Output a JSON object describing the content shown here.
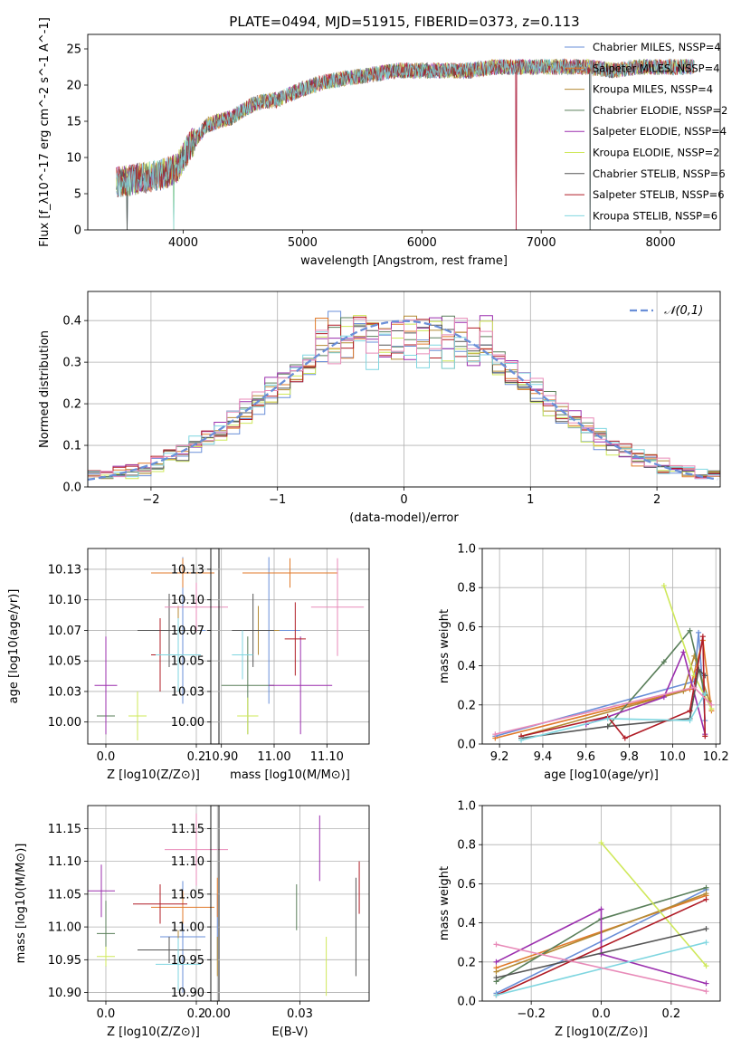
{
  "title": "PLATE=0494, MJD=51915, FIBERID=0373, z=0.113",
  "colors": [
    "#6a8fd8",
    "#e07a2a",
    "#b48a34",
    "#5a7f5a",
    "#9b2fae",
    "#cfe85a",
    "#555555",
    "#b01c26",
    "#7fd6e0",
    "#e88ab8"
  ],
  "chart_data": [
    {
      "id": "spectrum",
      "type": "line",
      "xlabel": "wavelength [Angstrom, rest frame]",
      "ylabel": "Flux [f_λ10^-17 erg cm^-2 s^-1 A^-1]",
      "xlim": [
        3200,
        8500
      ],
      "ylim": [
        0,
        27
      ],
      "xticks": [
        4000,
        5000,
        6000,
        7000,
        8000
      ],
      "yticks": [
        0,
        5,
        10,
        15,
        20,
        25
      ],
      "x_range": [
        3440,
        8280
      ],
      "legend_position": "right",
      "continuum_x": [
        3440,
        3600,
        3800,
        3950,
        4050,
        4200,
        4400,
        4600,
        4800,
        5000,
        5200,
        5400,
        5600,
        5800,
        6000,
        6200,
        6400,
        6600,
        6800,
        7000,
        7200,
        7400,
        7600,
        7800,
        8000,
        8280
      ],
      "continuum_y": [
        6.5,
        7.0,
        7.5,
        8.5,
        11.5,
        14.5,
        15.5,
        17.5,
        18.0,
        19.5,
        20.5,
        21.0,
        21.5,
        22.0,
        22.0,
        22.0,
        22.0,
        22.5,
        22.5,
        22.5,
        22.5,
        22.5,
        22.0,
        22.5,
        22.5,
        22.5
      ],
      "drops_x": [
        3530,
        3920,
        6790,
        7410
      ],
      "series": [
        {
          "name": "Chabrier MILES, N_SSP=4"
        },
        {
          "name": "Salpeter MILES, N_SSP=4"
        },
        {
          "name": "Kroupa MILES, N_SSP=4"
        },
        {
          "name": "Chabrier ELODIE, N_SSP=2"
        },
        {
          "name": "Salpeter ELODIE, N_SSP=4"
        },
        {
          "name": "Kroupa ELODIE, N_SSP=2"
        },
        {
          "name": "Chabrier STELIB, N_SSP=6"
        },
        {
          "name": "Salpeter STELIB, N_SSP=6"
        },
        {
          "name": "Kroupa STELIB, N_SSP=6"
        }
      ]
    },
    {
      "id": "residuals",
      "type": "step",
      "xlabel": "(data-model)/error",
      "ylabel": "Normed distribution",
      "xlim": [
        -2.5,
        2.5
      ],
      "ylim": [
        0,
        0.47
      ],
      "xticks": [
        -2,
        -1,
        0,
        1,
        2
      ],
      "yticks": [
        0.0,
        0.1,
        0.2,
        0.3,
        0.4
      ],
      "bin_width": 0.1,
      "reference_curve": "𝒩(0,1)",
      "legend_position": "top-right",
      "n_histograms": 10
    },
    {
      "id": "age_vs_Z",
      "type": "errorbar",
      "xlabel": "Z [log10(Z/Z⊙)]",
      "ylabel": "age  [log10(age/yr)]",
      "xlim": [
        -0.04,
        0.25
      ],
      "ylim": [
        9.982,
        10.142
      ],
      "xticks": [
        0.0,
        0.2
      ],
      "yticks": [
        10.0,
        10.025,
        10.05,
        10.075,
        10.1,
        10.125
      ],
      "points": [
        {
          "x": 0.17,
          "y": 10.075,
          "xerr": 0.05,
          "yerr": 0.06
        },
        {
          "x": 0.17,
          "y": 10.122,
          "xerr": 0.07,
          "yerr": 0.012
        },
        {
          "x": 0.16,
          "y": 10.075,
          "xerr": 0.05,
          "yerr": 0.02
        },
        {
          "x": 0.0,
          "y": 10.005,
          "xerr": 0.02,
          "yerr": 0.015
        },
        {
          "x": 0.0,
          "y": 10.03,
          "xerr": 0.025,
          "yerr": 0.04
        },
        {
          "x": 0.07,
          "y": 10.005,
          "xerr": 0.02,
          "yerr": 0.02
        },
        {
          "x": 0.14,
          "y": 10.075,
          "xerr": 0.07,
          "yerr": 0.03
        },
        {
          "x": 0.12,
          "y": 10.055,
          "xerr": 0.02,
          "yerr": 0.03
        },
        {
          "x": 0.16,
          "y": 10.055,
          "xerr": 0.05,
          "yerr": 0.03
        },
        {
          "x": 0.2,
          "y": 10.094,
          "xerr": 0.07,
          "yerr": 0.02
        }
      ]
    },
    {
      "id": "age_vs_mass",
      "type": "errorbar",
      "xlabel": "mass [log10(M/M⊙)]",
      "ylabel": "",
      "xlim": [
        10.88,
        11.18
      ],
      "ylim": [
        9.982,
        10.142
      ],
      "xticks": [
        10.9,
        11.0,
        11.1
      ],
      "yticks": [
        10.0,
        10.025,
        10.05,
        10.075,
        10.1,
        10.125
      ],
      "points": [
        {
          "x": 10.99,
          "y": 10.075,
          "xerr": 0.06,
          "yerr": 0.06
        },
        {
          "x": 11.03,
          "y": 10.122,
          "xerr": 0.09,
          "yerr": 0.012
        },
        {
          "x": 10.97,
          "y": 10.075,
          "xerr": 0.04,
          "yerr": 0.02
        },
        {
          "x": 10.95,
          "y": 10.03,
          "xerr": 0.05,
          "yerr": 0.04
        },
        {
          "x": 11.05,
          "y": 10.03,
          "xerr": 0.06,
          "yerr": 0.04
        },
        {
          "x": 10.95,
          "y": 10.005,
          "xerr": 0.02,
          "yerr": 0.015
        },
        {
          "x": 10.96,
          "y": 10.075,
          "xerr": 0.04,
          "yerr": 0.03
        },
        {
          "x": 11.04,
          "y": 10.068,
          "xerr": 0.02,
          "yerr": 0.03
        },
        {
          "x": 10.94,
          "y": 10.055,
          "xerr": 0.02,
          "yerr": 0.02
        },
        {
          "x": 11.12,
          "y": 10.094,
          "xerr": 0.05,
          "yerr": 0.04
        }
      ]
    },
    {
      "id": "weight_vs_age",
      "type": "line",
      "xlabel": "age  [log10(age/yr)]",
      "ylabel": "mass weight",
      "xlim": [
        9.12,
        10.22
      ],
      "ylim": [
        0,
        1
      ],
      "xticks": [
        9.2,
        9.4,
        9.6,
        9.8,
        10.0,
        10.2
      ],
      "yticks": [
        0.0,
        0.2,
        0.4,
        0.6,
        0.8,
        1.0
      ],
      "series": [
        {
          "x": [
            9.18,
            10.1,
            10.12,
            10.15
          ],
          "y": [
            0.04,
            0.32,
            0.57,
            0.12
          ]
        },
        {
          "x": [
            9.18,
            10.08,
            10.14,
            10.18
          ],
          "y": [
            0.03,
            0.28,
            0.53,
            0.17
          ]
        },
        {
          "x": [
            9.3,
            10.05,
            10.1,
            10.17
          ],
          "y": [
            0.04,
            0.27,
            0.45,
            0.22
          ]
        },
        {
          "x": [
            9.7,
            9.96,
            10.08,
            10.15
          ],
          "y": [
            0.09,
            0.42,
            0.58,
            0.25
          ]
        },
        {
          "x": [
            9.6,
            9.96,
            10.05,
            10.15
          ],
          "y": [
            0.1,
            0.24,
            0.47,
            0.05
          ]
        },
        {
          "x": [
            9.96,
            10.1,
            10.18
          ],
          "y": [
            0.81,
            0.35,
            0.18
          ]
        },
        {
          "x": [
            9.3,
            9.7,
            10.08,
            10.12,
            10.15
          ],
          "y": [
            0.03,
            0.09,
            0.13,
            0.38,
            0.35
          ]
        },
        {
          "x": [
            9.3,
            9.7,
            9.78,
            10.08,
            10.14,
            10.15
          ],
          "y": [
            0.04,
            0.14,
            0.03,
            0.17,
            0.55,
            0.04
          ]
        },
        {
          "x": [
            9.3,
            9.7,
            10.08,
            10.15
          ],
          "y": [
            0.02,
            0.13,
            0.12,
            0.26
          ]
        },
        {
          "x": [
            9.18,
            10.1,
            10.18
          ],
          "y": [
            0.05,
            0.29,
            0.2
          ]
        }
      ]
    },
    {
      "id": "mass_vs_Z",
      "type": "errorbar",
      "xlabel": "Z [log10(Z/Z⊙)]",
      "ylabel": "mass [log10(M/M⊙)]",
      "xlim": [
        -0.04,
        0.25
      ],
      "ylim": [
        10.887,
        11.185
      ],
      "xticks": [
        0.0,
        0.2
      ],
      "yticks": [
        10.9,
        10.95,
        11.0,
        11.05,
        11.1,
        11.15
      ],
      "points": [
        {
          "x": 0.17,
          "y": 10.985,
          "xerr": 0.05,
          "yerr": 0.085
        },
        {
          "x": 0.17,
          "y": 11.03,
          "xerr": 0.07,
          "yerr": 0.025
        },
        {
          "x": 0.16,
          "y": 10.965,
          "xerr": 0.05,
          "yerr": 0.03
        },
        {
          "x": 0.0,
          "y": 10.99,
          "xerr": 0.02,
          "yerr": 0.05
        },
        {
          "x": -0.01,
          "y": 11.055,
          "xerr": 0.03,
          "yerr": 0.04
        },
        {
          "x": 0.0,
          "y": 10.955,
          "xerr": 0.02,
          "yerr": 0.015
        },
        {
          "x": 0.14,
          "y": 10.965,
          "xerr": 0.07,
          "yerr": 0.02
        },
        {
          "x": 0.12,
          "y": 11.035,
          "xerr": 0.06,
          "yerr": 0.03
        },
        {
          "x": 0.16,
          "y": 10.943,
          "xerr": 0.05,
          "yerr": 0.04
        },
        {
          "x": 0.2,
          "y": 11.118,
          "xerr": 0.07,
          "yerr": 0.055
        }
      ]
    },
    {
      "id": "mass_vs_ebv",
      "type": "errorbar",
      "xlabel": "E(B-V)",
      "ylabel": "",
      "xlim": [
        -0.002,
        0.046
      ],
      "ylim": [
        10.887,
        11.185
      ],
      "xticks": [
        0.0,
        0.025
      ],
      "yticks": [
        10.9,
        10.95,
        11.0,
        11.05,
        11.1,
        11.15
      ],
      "points": [
        {
          "x": 0.0,
          "y": 11.0,
          "yerr": 0.05
        },
        {
          "x": 0.0,
          "y": 11.045,
          "yerr": 0.03
        },
        {
          "x": 0.0,
          "y": 10.955,
          "yerr": 0.03
        },
        {
          "x": 0.024,
          "y": 11.03,
          "yerr": 0.035
        },
        {
          "x": 0.031,
          "y": 11.12,
          "yerr": 0.05
        },
        {
          "x": 0.033,
          "y": 10.94,
          "yerr": 0.045
        },
        {
          "x": 0.042,
          "y": 11.0,
          "yerr": 0.075
        },
        {
          "x": 0.043,
          "y": 11.06,
          "yerr": 0.04
        }
      ]
    },
    {
      "id": "weight_vs_Z",
      "type": "line",
      "xlabel": "Z [log10(Z/Z⊙)]",
      "ylabel": "mass weight",
      "xlim": [
        -0.34,
        0.34
      ],
      "ylim": [
        0,
        1
      ],
      "xticks": [
        -0.2,
        0.0,
        0.2
      ],
      "yticks": [
        0.0,
        0.2,
        0.4,
        0.6,
        0.8,
        1.0
      ],
      "series": [
        {
          "x": [
            -0.3,
            0.3
          ],
          "y": [
            0.04,
            0.57
          ]
        },
        {
          "x": [
            -0.3,
            0.3
          ],
          "y": [
            0.17,
            0.54
          ]
        },
        {
          "x": [
            -0.3,
            0.3
          ],
          "y": [
            0.15,
            0.55
          ]
        },
        {
          "x": [
            -0.3,
            0.0,
            0.3
          ],
          "y": [
            0.1,
            0.42,
            0.58
          ]
        },
        {
          "x": [
            -0.3,
            0.0,
            0.0,
            0.3
          ],
          "y": [
            0.2,
            0.47,
            0.24,
            0.09
          ]
        },
        {
          "x": [
            0.0,
            0.3
          ],
          "y": [
            0.81,
            0.18
          ]
        },
        {
          "x": [
            -0.3,
            0.3
          ],
          "y": [
            0.12,
            0.37
          ]
        },
        {
          "x": [
            -0.3,
            0.3
          ],
          "y": [
            0.03,
            0.52
          ]
        },
        {
          "x": [
            -0.3,
            0.3
          ],
          "y": [
            0.03,
            0.3
          ]
        },
        {
          "x": [
            -0.3,
            0.3
          ],
          "y": [
            0.29,
            0.05
          ]
        }
      ]
    }
  ]
}
